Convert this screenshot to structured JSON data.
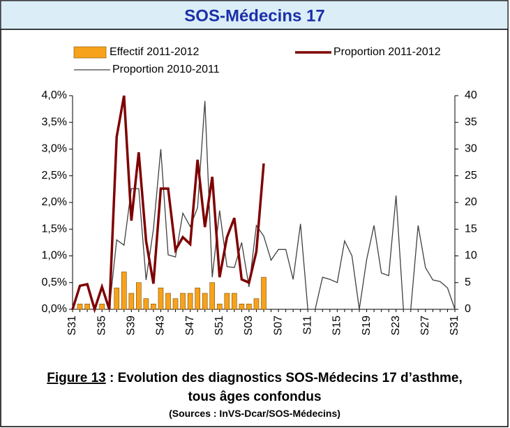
{
  "header": {
    "title": "SOS-Médecins 17"
  },
  "caption": {
    "figure_label": "Figure 13",
    "line1": " : Evolution des diagnostics SOS-Médecins 17 d’asthme,",
    "line2": "tous âges confondus",
    "source": "(Sources : InVS-Dcar/SOS-Médecins)"
  },
  "chart_data": {
    "type": "combo",
    "legend": "top",
    "categories": [
      "S31",
      null,
      null,
      null,
      "S35",
      null,
      null,
      null,
      "S39",
      null,
      null,
      null,
      "S43",
      null,
      null,
      null,
      "S47",
      null,
      null,
      null,
      "S51",
      null,
      null,
      null,
      "S03",
      null,
      null,
      null,
      "S07",
      null,
      null,
      null,
      "S11",
      null,
      null,
      null,
      "S15",
      null,
      null,
      null,
      "S19",
      null,
      null,
      null,
      "S23",
      null,
      null,
      null,
      "S27",
      null,
      null,
      null,
      "S31"
    ],
    "ylim": [
      0,
      4
    ],
    "yticks": [
      {
        "value": 0,
        "label": "0,0%"
      },
      {
        "value": 0.5,
        "label": "0,5%"
      },
      {
        "value": 1,
        "label": "1,0%"
      },
      {
        "value": 1.5,
        "label": "1,5%"
      },
      {
        "value": 2,
        "label": "2,0%"
      },
      {
        "value": 2.5,
        "label": "2,5%"
      },
      {
        "value": 3,
        "label": "3,0%"
      },
      {
        "value": 3.5,
        "label": "3,5%"
      },
      {
        "value": 4,
        "label": "4,0%"
      }
    ],
    "y2lim": [
      0,
      40
    ],
    "y2ticks": [
      0,
      5,
      10,
      15,
      20,
      25,
      30,
      35,
      40
    ],
    "series": [
      {
        "name": "Effectif 2011-2012",
        "type": "bar",
        "axis": "y2",
        "color": "#f7a21b",
        "values": [
          0,
          1,
          1,
          0,
          1,
          0,
          4,
          7,
          3,
          5,
          2,
          1,
          4,
          3,
          2,
          3,
          3,
          4,
          3,
          5,
          1,
          3,
          3,
          1,
          1,
          2,
          6,
          null,
          null,
          null,
          null,
          null,
          null,
          null,
          null,
          null,
          null,
          null,
          null,
          null,
          null,
          null,
          null,
          null,
          null,
          null,
          null,
          null,
          null,
          null,
          null,
          null,
          null
        ]
      },
      {
        "name": "Proportion 2011-2012",
        "type": "line",
        "color": "#7f0000",
        "values": [
          0,
          0.44,
          0.47,
          0,
          0.42,
          0,
          3.23,
          4.0,
          1.66,
          2.94,
          1.28,
          0.48,
          2.26,
          2.26,
          1.11,
          1.35,
          1.22,
          2.8,
          1.54,
          2.48,
          0.6,
          1.35,
          1.71,
          0.56,
          0.5,
          1.08,
          2.73,
          null,
          null,
          null,
          null,
          null,
          null,
          null,
          null,
          null,
          null,
          null,
          null,
          null,
          null,
          null,
          null,
          null,
          null,
          null,
          null,
          null,
          null,
          null,
          null,
          null,
          null
        ]
      },
      {
        "name": "Proportion 2010-2011",
        "type": "line",
        "color": "#404040",
        "values": [
          0,
          0.45,
          0.45,
          0,
          0.42,
          0,
          1.3,
          1.2,
          2.26,
          2.26,
          0.55,
          1.5,
          3.0,
          1.02,
          0.98,
          1.8,
          1.55,
          1.9,
          3.9,
          0.6,
          1.85,
          0.8,
          0.78,
          1.25,
          0.42,
          1.57,
          1.37,
          0.92,
          1.12,
          1.12,
          0.56,
          1.6,
          0,
          0,
          0.6,
          0.56,
          0.5,
          1.28,
          1.0,
          0,
          0.93,
          1.57,
          0.68,
          0.63,
          2.13,
          0,
          0,
          1.57,
          0.78,
          0.55,
          0.52,
          0.4,
          0
        ]
      }
    ]
  }
}
